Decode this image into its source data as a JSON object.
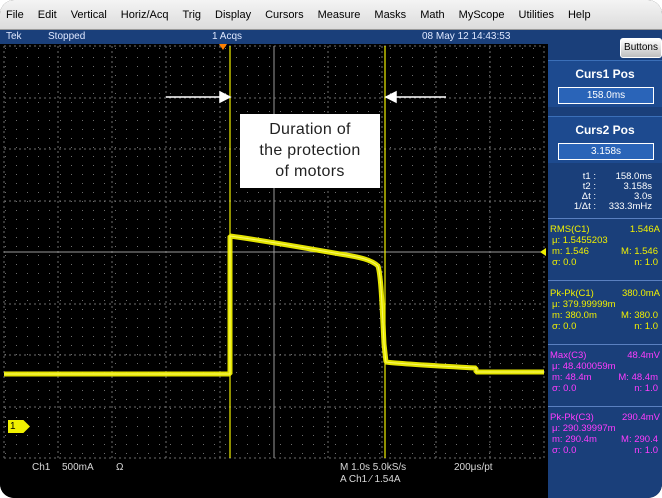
{
  "menu": [
    "File",
    "Edit",
    "Vertical",
    "Horiz/Acq",
    "Trig",
    "Display",
    "Cursors",
    "Measure",
    "Masks",
    "Math",
    "MyScope",
    "Utilities",
    "Help"
  ],
  "status": {
    "brand": "Tek",
    "run_state": "Stopped",
    "acquisitions": "1 Acqs",
    "datetime": "08 May 12 14:43:53"
  },
  "panel": {
    "buttons_label": "Buttons",
    "curs1": {
      "title": "Curs1 Pos",
      "value": "158.0ms"
    },
    "curs2": {
      "title": "Curs2 Pos",
      "value": "3.158s"
    },
    "readout": [
      {
        "k": "t1 :",
        "v": "158.0ms"
      },
      {
        "k": "t2 :",
        "v": "3.158s"
      },
      {
        "k": "Δt :",
        "v": "3.0s"
      },
      {
        "k": "1/Δt :",
        "v": "333.3mHz"
      }
    ],
    "measurements": [
      {
        "name": "RMS(C1)",
        "value": "1.546A",
        "mu": "μ: 1.5455203",
        "m": "m: 1.546",
        "M": "M: 1.546",
        "sigma": "σ: 0.0",
        "n": "n: 1.0",
        "color": "#f0f000"
      },
      {
        "name": "Pk-Pk(C1)",
        "value": "380.0mA",
        "mu": "μ: 379.99999m",
        "m": "m: 380.0m",
        "M": "M: 380.0",
        "sigma": "σ: 0.0",
        "n": "n: 1.0",
        "color": "#f0f000"
      },
      {
        "name": "Max(C3)",
        "value": "48.4mV",
        "mu": "μ: 48.400059m",
        "m": "m: 48.4m",
        "M": "M: 48.4m",
        "sigma": "σ: 0.0",
        "n": "n: 1.0",
        "color": "#ff3cff"
      },
      {
        "name": "Pk-Pk(C3)",
        "value": "290.4mV",
        "mu": "μ: 290.39997m",
        "m": "m: 290.4m",
        "M": "M: 290.4",
        "sigma": "σ: 0.0",
        "n": "n: 1.0",
        "color": "#ff3cff"
      }
    ]
  },
  "bottom": {
    "channel": "Ch1",
    "scale": "500mA",
    "impedance": "Ω",
    "timebase": "M 1.0s 5.0kS/s",
    "resolution": "200μs/pt",
    "trigger": "A  Ch1  ⁄  1.54A"
  },
  "annotation": [
    "Duration of",
    "the protection",
    "of motors"
  ],
  "ch1_marker": "1",
  "colors": {
    "trace": "#f0f000",
    "cursor": "#f0f000",
    "panel_bg": "#1a3f7a",
    "status_bg": "#1a3f7a"
  }
}
